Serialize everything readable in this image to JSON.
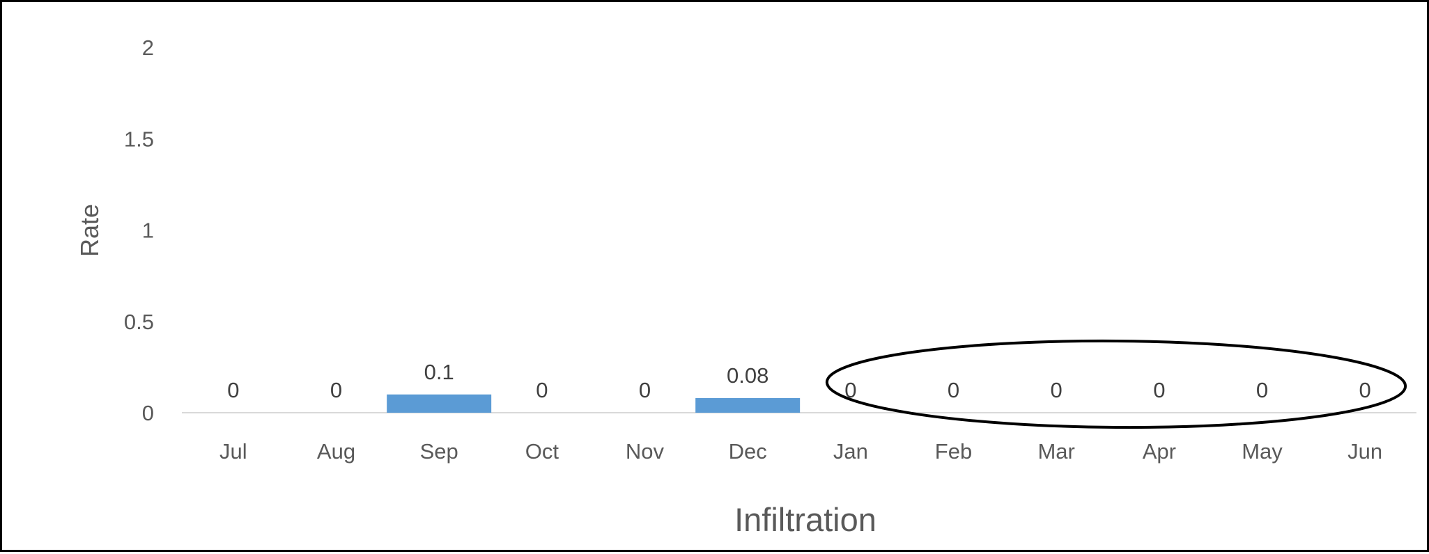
{
  "chart_data": {
    "type": "bar",
    "categories": [
      "Jul",
      "Aug",
      "Sep",
      "Oct",
      "Nov",
      "Dec",
      "Jan",
      "Feb",
      "Mar",
      "Apr",
      "May",
      "Jun"
    ],
    "values": [
      0,
      0,
      0.1,
      0,
      0,
      0.08,
      0,
      0,
      0,
      0,
      0,
      0
    ],
    "data_labels": [
      "0",
      "0",
      "0.1",
      "0",
      "0",
      "0.08",
      "0",
      "0",
      "0",
      "0",
      "0",
      "0"
    ],
    "ylabel": "Rate",
    "xlabel": "Infiltration",
    "ylim": [
      0,
      2
    ],
    "yticks": [
      "0",
      "0.5",
      "1",
      "1.5",
      "2"
    ],
    "grid": false,
    "legend": "none",
    "bar_color": "#5b9bd5",
    "axis_line_color": "#d9d9d9",
    "annotation": {
      "shape": "ellipse",
      "stroke_color": "#000000",
      "encircles_categories": [
        "Jan",
        "Feb",
        "Mar",
        "Apr",
        "May",
        "Jun"
      ]
    }
  }
}
